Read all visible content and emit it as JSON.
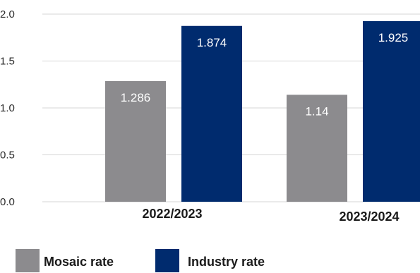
{
  "chart_data": {
    "type": "bar",
    "categories": [
      "2022/2023",
      "2023/2024"
    ],
    "series": [
      {
        "name": "Mosaic rate",
        "values": [
          1.286,
          1.14
        ],
        "color": "#8c8b8e"
      },
      {
        "name": "Industry rate",
        "values": [
          1.874,
          1.925
        ],
        "color": "#002b6e"
      }
    ],
    "data_labels": [
      [
        "1.286",
        "1.14"
      ],
      [
        "1.874",
        "1.925"
      ]
    ],
    "yticks": [
      "0.0",
      "0.5",
      "1.0",
      "1.5",
      "2.0"
    ],
    "ytick_values": [
      0,
      0.5,
      1.0,
      1.5,
      2.0
    ],
    "ylim": [
      0,
      2.0
    ],
    "grid": true,
    "gridline_color": "#d6d6d6",
    "legend_position": "bottom-left"
  }
}
